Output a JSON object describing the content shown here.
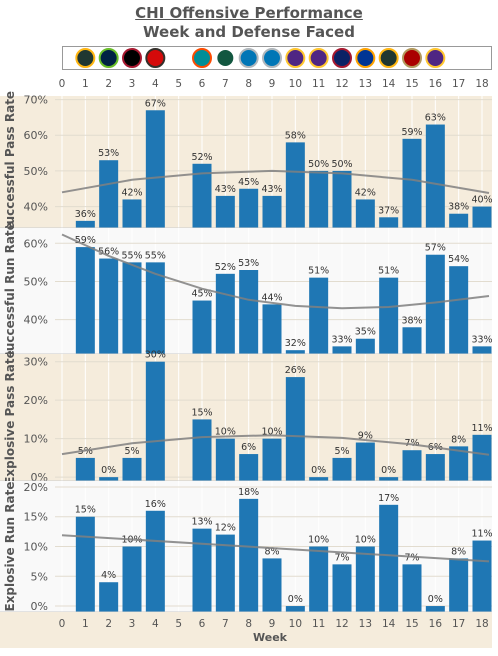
{
  "title": "CHI Offensive Performance",
  "subtitle": "Week and Defense Faced",
  "colors": {
    "bar": "#1f77b4",
    "trend": "#808080",
    "panel_bg_tan": "#f5ecdc",
    "panel_bg_light": "#f9f9f9"
  },
  "opponents": [
    {
      "week": 1,
      "team": "GB",
      "colors": [
        "#203731",
        "#FFB612"
      ]
    },
    {
      "week": 2,
      "team": "SEA",
      "colors": [
        "#002244",
        "#69BE28"
      ]
    },
    {
      "week": 3,
      "team": "ATL",
      "colors": [
        "#000000",
        "#A71930"
      ]
    },
    {
      "week": 4,
      "team": "TB",
      "colors": [
        "#D50A0A",
        "#34302B"
      ]
    },
    {
      "week": 6,
      "team": "MIA",
      "colors": [
        "#008E97",
        "#FC4C02"
      ]
    },
    {
      "week": 7,
      "team": "NYJ",
      "colors": [
        "#125740",
        "#ffffff"
      ]
    },
    {
      "week": 8,
      "team": "DET",
      "colors": [
        "#0076B6",
        "#B0B7BC"
      ]
    },
    {
      "week": 9,
      "team": "DET",
      "colors": [
        "#0076B6",
        "#B0B7BC"
      ]
    },
    {
      "week": 10,
      "team": "MIN",
      "colors": [
        "#4F2683",
        "#FFC62F"
      ]
    },
    {
      "week": 11,
      "team": "MIN",
      "colors": [
        "#4F2683",
        "#FFC62F"
      ]
    },
    {
      "week": 12,
      "team": "NYG",
      "colors": [
        "#0B2265",
        "#A71930"
      ]
    },
    {
      "week": 13,
      "team": "LAR",
      "colors": [
        "#003594",
        "#FFA300"
      ]
    },
    {
      "week": 14,
      "team": "GB",
      "colors": [
        "#203731",
        "#FFB612"
      ]
    },
    {
      "week": 15,
      "team": "SF",
      "colors": [
        "#AA0000",
        "#B3995D"
      ]
    },
    {
      "week": 16,
      "team": "MIN",
      "colors": [
        "#4F2683",
        "#FFC62F"
      ]
    }
  ],
  "chart_data": {
    "type": "bar",
    "xlabel": "Week",
    "x_ticks": [
      0,
      1,
      2,
      3,
      4,
      5,
      6,
      7,
      8,
      9,
      10,
      11,
      12,
      13,
      14,
      15,
      16,
      17,
      18
    ],
    "xlim": [
      0,
      18.3
    ],
    "grid": true,
    "panels": [
      {
        "ylabel": "Successful Pass Rate",
        "ylim": [
          0.34,
          0.71
        ],
        "yticks": [
          0.4,
          0.5,
          0.6,
          0.7
        ],
        "ytick_labels": [
          "40%",
          "50%",
          "60%",
          "70%"
        ],
        "weeks": [
          1,
          2,
          3,
          4,
          6,
          7,
          8,
          9,
          10,
          11,
          12,
          13,
          14,
          15,
          16,
          17,
          18
        ],
        "values": [
          0.36,
          0.53,
          0.42,
          0.67,
          0.52,
          0.43,
          0.45,
          0.43,
          0.58,
          0.5,
          0.5,
          0.42,
          0.37,
          0.59,
          0.63,
          0.38,
          0.4
        ],
        "labels": [
          "36%",
          "53%",
          "42%",
          "67%",
          "52%",
          "43%",
          "45%",
          "43%",
          "58%",
          "50%",
          "50%",
          "42%",
          "37%",
          "59%",
          "63%",
          "38%",
          "40%"
        ],
        "trend": [
          [
            0,
            0.44
          ],
          [
            3,
            0.475
          ],
          [
            6,
            0.493
          ],
          [
            9,
            0.5
          ],
          [
            12,
            0.493
          ],
          [
            15,
            0.475
          ],
          [
            18.3,
            0.438
          ]
        ]
      },
      {
        "ylabel": "Successful Run Rate",
        "ylim": [
          0.31,
          0.64
        ],
        "yticks": [
          0.4,
          0.5,
          0.6
        ],
        "ytick_labels": [
          "40%",
          "50%",
          "60%"
        ],
        "weeks": [
          1,
          2,
          3,
          4,
          6,
          7,
          8,
          9,
          10,
          11,
          12,
          13,
          14,
          15,
          16,
          17,
          18
        ],
        "values": [
          0.59,
          0.56,
          0.55,
          0.55,
          0.45,
          0.52,
          0.53,
          0.44,
          0.32,
          0.51,
          0.33,
          0.35,
          0.51,
          0.38,
          0.57,
          0.54,
          0.33
        ],
        "labels": [
          "59%",
          "56%",
          "55%",
          "55%",
          "45%",
          "52%",
          "53%",
          "44%",
          "32%",
          "51%",
          "33%",
          "35%",
          "51%",
          "38%",
          "57%",
          "54%",
          "33%"
        ],
        "trend": [
          [
            0,
            0.623
          ],
          [
            2,
            0.567
          ],
          [
            4,
            0.52
          ],
          [
            6,
            0.481
          ],
          [
            8,
            0.452
          ],
          [
            10,
            0.436
          ],
          [
            12,
            0.43
          ],
          [
            14,
            0.433
          ],
          [
            16,
            0.445
          ],
          [
            18.3,
            0.462
          ]
        ]
      },
      {
        "ylabel": "Explosive Pass Rate",
        "ylim": [
          -0.01,
          0.32
        ],
        "yticks": [
          0.0,
          0.1,
          0.2,
          0.3
        ],
        "ytick_labels": [
          "0%",
          "10%",
          "20%",
          "30%"
        ],
        "weeks": [
          1,
          2,
          3,
          4,
          6,
          7,
          8,
          9,
          10,
          11,
          12,
          13,
          14,
          15,
          16,
          17,
          18
        ],
        "values": [
          0.05,
          0.0,
          0.05,
          0.3,
          0.15,
          0.1,
          0.06,
          0.1,
          0.26,
          0.0,
          0.05,
          0.09,
          0.0,
          0.07,
          0.06,
          0.08,
          0.11
        ],
        "labels": [
          "5%",
          "0%",
          "5%",
          "30%",
          "15%",
          "10%",
          "6%",
          "10%",
          "26%",
          "0%",
          "5%",
          "9%",
          "0%",
          "7%",
          "6%",
          "8%",
          "11%"
        ],
        "trend": [
          [
            0,
            0.06
          ],
          [
            3,
            0.088
          ],
          [
            6,
            0.104
          ],
          [
            9,
            0.109
          ],
          [
            12,
            0.102
          ],
          [
            15,
            0.085
          ],
          [
            18.3,
            0.058
          ]
        ]
      },
      {
        "ylabel": "Explosive Run Rate",
        "ylim": [
          -0.01,
          0.21
        ],
        "yticks": [
          0.0,
          0.05,
          0.1,
          0.15,
          0.2
        ],
        "ytick_labels": [
          "0%",
          "5%",
          "10%",
          "15%",
          "20%"
        ],
        "weeks": [
          1,
          2,
          3,
          4,
          6,
          7,
          8,
          9,
          10,
          11,
          12,
          13,
          14,
          15,
          16,
          17,
          18
        ],
        "values": [
          0.15,
          0.04,
          0.1,
          0.16,
          0.13,
          0.12,
          0.18,
          0.08,
          0.0,
          0.1,
          0.07,
          0.1,
          0.17,
          0.07,
          0.0,
          0.08,
          0.11
        ],
        "labels": [
          "15%",
          "4%",
          "10%",
          "16%",
          "13%",
          "12%",
          "18%",
          "8%",
          "0%",
          "10%",
          "7%",
          "10%",
          "17%",
          "7%",
          "0%",
          "8%",
          "11%"
        ],
        "trend": [
          [
            0,
            0.119
          ],
          [
            18.3,
            0.075
          ]
        ]
      }
    ]
  }
}
